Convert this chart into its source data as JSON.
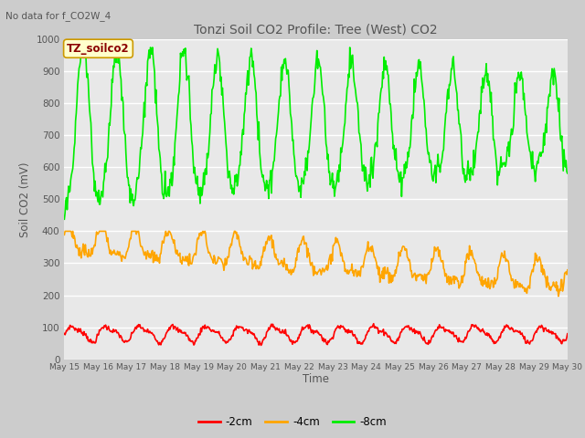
{
  "title": "Tonzi Soil CO2 Profile: Tree (West) CO2",
  "top_left_text": "No data for f_CO2W_4",
  "ylabel": "Soil CO2 (mV)",
  "xlabel": "Time",
  "legend_box_text": "TZ_soilco2",
  "ylim": [
    0,
    1000
  ],
  "fig_bg_color": "#cccccc",
  "plot_bg_color": "#e8e8e8",
  "series": [
    {
      "label": "-2cm",
      "color": "#ff0000"
    },
    {
      "label": "-4cm",
      "color": "#ffa500"
    },
    {
      "label": "-8cm",
      "color": "#00ee00"
    }
  ],
  "x_tick_labels": [
    "May 15",
    "May 16",
    "May 17",
    "May 18",
    "May 19",
    "May 20",
    "May 21",
    "May 22",
    "May 23",
    "May 24",
    "May 25",
    "May 26",
    "May 27",
    "May 28",
    "May 29",
    "May 30"
  ],
  "n_days": 15,
  "pts_per_day": 48
}
